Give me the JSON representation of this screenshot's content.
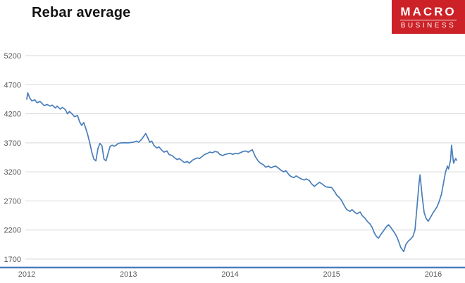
{
  "header": {
    "title": "Rebar average",
    "logo": {
      "line1": "MACRO",
      "line2": "BUSINESS",
      "bg_color": "#cc2127",
      "text_color": "#ffffff"
    }
  },
  "chart_data": {
    "type": "line",
    "title": "Rebar average",
    "xlabel": "",
    "ylabel": "",
    "xlim": [
      2012,
      2016.25
    ],
    "ylim": [
      1700,
      5200
    ],
    "x_ticks": [
      2012,
      2013,
      2014,
      2015,
      2016
    ],
    "x_tick_labels": [
      "2012",
      "2013",
      "2014",
      "2015",
      "2016"
    ],
    "y_ticks": [
      1700,
      2200,
      2700,
      3200,
      3700,
      4200,
      4700,
      5200
    ],
    "y_tick_labels": [
      "1700",
      "2200",
      "2700",
      "3200",
      "3700",
      "4200",
      "4700",
      "5200"
    ],
    "grid": "horizontal",
    "gridline_color": "#d9d9d9",
    "axis_label_color": "#595959",
    "axis_line_color": "#4a7ebc",
    "legend": "none",
    "series": [
      {
        "name": "Rebar average",
        "color": "#4a7ebc",
        "points": [
          [
            2012.0,
            4450
          ],
          [
            2012.01,
            4560
          ],
          [
            2012.03,
            4470
          ],
          [
            2012.05,
            4420
          ],
          [
            2012.08,
            4440
          ],
          [
            2012.1,
            4390
          ],
          [
            2012.13,
            4410
          ],
          [
            2012.15,
            4380
          ],
          [
            2012.17,
            4340
          ],
          [
            2012.2,
            4360
          ],
          [
            2012.23,
            4330
          ],
          [
            2012.25,
            4350
          ],
          [
            2012.28,
            4300
          ],
          [
            2012.3,
            4330
          ],
          [
            2012.33,
            4280
          ],
          [
            2012.35,
            4310
          ],
          [
            2012.38,
            4270
          ],
          [
            2012.4,
            4200
          ],
          [
            2012.42,
            4240
          ],
          [
            2012.45,
            4190
          ],
          [
            2012.47,
            4150
          ],
          [
            2012.5,
            4170
          ],
          [
            2012.52,
            4060
          ],
          [
            2012.54,
            4000
          ],
          [
            2012.56,
            4050
          ],
          [
            2012.58,
            3950
          ],
          [
            2012.6,
            3840
          ],
          [
            2012.62,
            3700
          ],
          [
            2012.64,
            3540
          ],
          [
            2012.66,
            3420
          ],
          [
            2012.68,
            3390
          ],
          [
            2012.7,
            3600
          ],
          [
            2012.72,
            3690
          ],
          [
            2012.74,
            3650
          ],
          [
            2012.76,
            3420
          ],
          [
            2012.78,
            3390
          ],
          [
            2012.8,
            3520
          ],
          [
            2012.82,
            3640
          ],
          [
            2012.84,
            3660
          ],
          [
            2012.86,
            3640
          ],
          [
            2012.88,
            3660
          ],
          [
            2012.9,
            3690
          ],
          [
            2012.93,
            3700
          ],
          [
            2012.96,
            3700
          ],
          [
            2013.0,
            3700
          ],
          [
            2013.05,
            3710
          ],
          [
            2013.08,
            3730
          ],
          [
            2013.1,
            3710
          ],
          [
            2013.13,
            3760
          ],
          [
            2013.15,
            3810
          ],
          [
            2013.17,
            3860
          ],
          [
            2013.19,
            3790
          ],
          [
            2013.21,
            3710
          ],
          [
            2013.23,
            3730
          ],
          [
            2013.25,
            3660
          ],
          [
            2013.28,
            3610
          ],
          [
            2013.3,
            3630
          ],
          [
            2013.33,
            3570
          ],
          [
            2013.35,
            3540
          ],
          [
            2013.38,
            3560
          ],
          [
            2013.4,
            3500
          ],
          [
            2013.43,
            3480
          ],
          [
            2013.45,
            3450
          ],
          [
            2013.48,
            3410
          ],
          [
            2013.5,
            3430
          ],
          [
            2013.53,
            3390
          ],
          [
            2013.55,
            3360
          ],
          [
            2013.58,
            3380
          ],
          [
            2013.6,
            3350
          ],
          [
            2013.63,
            3400
          ],
          [
            2013.65,
            3420
          ],
          [
            2013.68,
            3440
          ],
          [
            2013.7,
            3430
          ],
          [
            2013.73,
            3470
          ],
          [
            2013.75,
            3500
          ],
          [
            2013.78,
            3520
          ],
          [
            2013.8,
            3540
          ],
          [
            2013.83,
            3530
          ],
          [
            2013.85,
            3550
          ],
          [
            2013.88,
            3540
          ],
          [
            2013.9,
            3500
          ],
          [
            2013.93,
            3480
          ],
          [
            2013.95,
            3500
          ],
          [
            2014.0,
            3520
          ],
          [
            2014.03,
            3500
          ],
          [
            2014.05,
            3520
          ],
          [
            2014.08,
            3510
          ],
          [
            2014.1,
            3530
          ],
          [
            2014.13,
            3550
          ],
          [
            2014.15,
            3560
          ],
          [
            2014.18,
            3540
          ],
          [
            2014.2,
            3560
          ],
          [
            2014.22,
            3580
          ],
          [
            2014.25,
            3460
          ],
          [
            2014.28,
            3380
          ],
          [
            2014.3,
            3350
          ],
          [
            2014.33,
            3320
          ],
          [
            2014.35,
            3280
          ],
          [
            2014.38,
            3300
          ],
          [
            2014.4,
            3270
          ],
          [
            2014.43,
            3290
          ],
          [
            2014.45,
            3300
          ],
          [
            2014.48,
            3260
          ],
          [
            2014.5,
            3230
          ],
          [
            2014.53,
            3200
          ],
          [
            2014.55,
            3220
          ],
          [
            2014.58,
            3150
          ],
          [
            2014.6,
            3120
          ],
          [
            2014.63,
            3100
          ],
          [
            2014.65,
            3130
          ],
          [
            2014.68,
            3100
          ],
          [
            2014.7,
            3080
          ],
          [
            2014.73,
            3060
          ],
          [
            2014.75,
            3080
          ],
          [
            2014.78,
            3050
          ],
          [
            2014.8,
            3000
          ],
          [
            2014.83,
            2950
          ],
          [
            2014.85,
            2980
          ],
          [
            2014.88,
            3020
          ],
          [
            2014.9,
            3000
          ],
          [
            2014.93,
            2960
          ],
          [
            2014.95,
            2940
          ],
          [
            2015.0,
            2930
          ],
          [
            2015.03,
            2860
          ],
          [
            2015.05,
            2800
          ],
          [
            2015.08,
            2750
          ],
          [
            2015.1,
            2700
          ],
          [
            2015.13,
            2600
          ],
          [
            2015.15,
            2550
          ],
          [
            2015.18,
            2520
          ],
          [
            2015.2,
            2550
          ],
          [
            2015.23,
            2500
          ],
          [
            2015.25,
            2480
          ],
          [
            2015.28,
            2510
          ],
          [
            2015.3,
            2450
          ],
          [
            2015.33,
            2400
          ],
          [
            2015.35,
            2350
          ],
          [
            2015.38,
            2300
          ],
          [
            2015.4,
            2240
          ],
          [
            2015.42,
            2150
          ],
          [
            2015.44,
            2090
          ],
          [
            2015.46,
            2060
          ],
          [
            2015.48,
            2110
          ],
          [
            2015.5,
            2160
          ],
          [
            2015.52,
            2210
          ],
          [
            2015.54,
            2260
          ],
          [
            2015.56,
            2290
          ],
          [
            2015.58,
            2250
          ],
          [
            2015.6,
            2200
          ],
          [
            2015.62,
            2150
          ],
          [
            2015.64,
            2090
          ],
          [
            2015.66,
            2000
          ],
          [
            2015.68,
            1900
          ],
          [
            2015.7,
            1850
          ],
          [
            2015.71,
            1830
          ],
          [
            2015.73,
            1950
          ],
          [
            2015.75,
            2000
          ],
          [
            2015.78,
            2050
          ],
          [
            2015.8,
            2090
          ],
          [
            2015.82,
            2200
          ],
          [
            2015.84,
            2600
          ],
          [
            2015.86,
            3000
          ],
          [
            2015.87,
            3150
          ],
          [
            2015.89,
            2790
          ],
          [
            2015.91,
            2500
          ],
          [
            2015.93,
            2400
          ],
          [
            2015.95,
            2350
          ],
          [
            2015.97,
            2410
          ],
          [
            2016.0,
            2500
          ],
          [
            2016.02,
            2550
          ],
          [
            2016.04,
            2610
          ],
          [
            2016.06,
            2700
          ],
          [
            2016.08,
            2810
          ],
          [
            2016.1,
            3000
          ],
          [
            2016.12,
            3190
          ],
          [
            2016.14,
            3300
          ],
          [
            2016.15,
            3250
          ],
          [
            2016.17,
            3400
          ],
          [
            2016.18,
            3660
          ],
          [
            2016.19,
            3500
          ],
          [
            2016.2,
            3350
          ],
          [
            2016.22,
            3430
          ],
          [
            2016.23,
            3400
          ]
        ]
      }
    ]
  }
}
